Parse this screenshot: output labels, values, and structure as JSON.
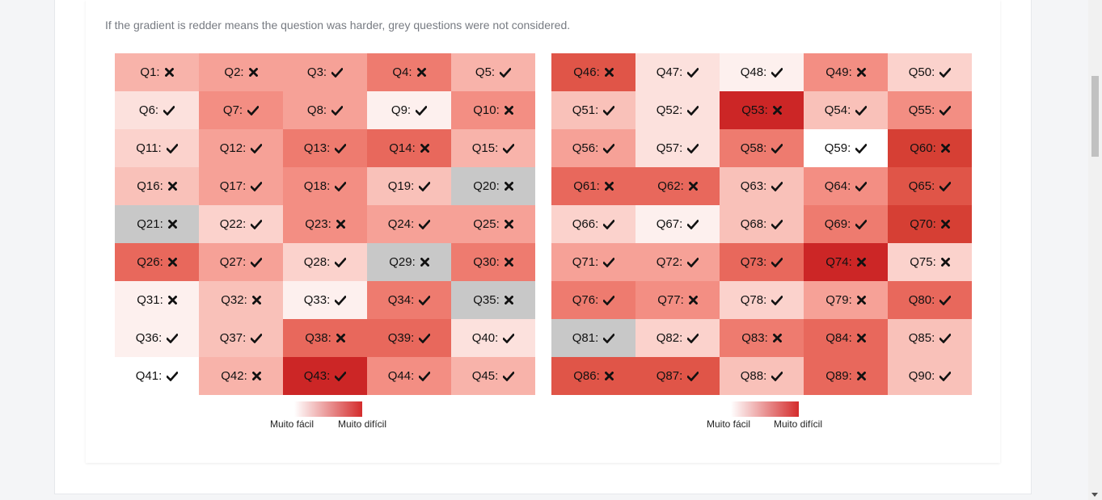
{
  "note": "If the gradient is redder means the question was harder, grey questions were not considered.",
  "legend": {
    "easy": "Muito fácil",
    "hard": "Muito difícil",
    "gradient_from": "#ffffff",
    "gradient_to": "#d42c2c"
  },
  "gradient_colors": [
    "#ffffff",
    "#fdf0ee",
    "#fce1dd",
    "#fbd2cc",
    "#f9c1b9",
    "#f8b3aa",
    "#f6a197",
    "#f38e83",
    "#ee7b6f",
    "#e8685c",
    "#e05548",
    "#d63f34",
    "#cc2626"
  ],
  "grey_color": "#c8c8c8",
  "grids": [
    {
      "questions": [
        {
          "label": "Q1:",
          "status": "wrong",
          "level": 5
        },
        {
          "label": "Q2:",
          "status": "wrong",
          "level": 6
        },
        {
          "label": "Q3:",
          "status": "correct",
          "level": 6
        },
        {
          "label": "Q4:",
          "status": "wrong",
          "level": 8
        },
        {
          "label": "Q5:",
          "status": "correct",
          "level": 5
        },
        {
          "label": "Q6:",
          "status": "correct",
          "level": 2
        },
        {
          "label": "Q7:",
          "status": "correct",
          "level": 7
        },
        {
          "label": "Q8:",
          "status": "correct",
          "level": 6
        },
        {
          "label": "Q9:",
          "status": "correct",
          "level": 1
        },
        {
          "label": "Q10:",
          "status": "wrong",
          "level": 7
        },
        {
          "label": "Q11:",
          "status": "correct",
          "level": 3
        },
        {
          "label": "Q12:",
          "status": "correct",
          "level": 6
        },
        {
          "label": "Q13:",
          "status": "correct",
          "level": 8
        },
        {
          "label": "Q14:",
          "status": "wrong",
          "level": 9
        },
        {
          "label": "Q15:",
          "status": "correct",
          "level": 5
        },
        {
          "label": "Q16:",
          "status": "wrong",
          "level": 4
        },
        {
          "label": "Q17:",
          "status": "correct",
          "level": 6
        },
        {
          "label": "Q18:",
          "status": "correct",
          "level": 7
        },
        {
          "label": "Q19:",
          "status": "correct",
          "level": 4
        },
        {
          "label": "Q20:",
          "status": "wrong",
          "grey": true
        },
        {
          "label": "Q21:",
          "status": "wrong",
          "grey": true
        },
        {
          "label": "Q22:",
          "status": "correct",
          "level": 3
        },
        {
          "label": "Q23:",
          "status": "wrong",
          "level": 7
        },
        {
          "label": "Q24:",
          "status": "correct",
          "level": 6
        },
        {
          "label": "Q25:",
          "status": "wrong",
          "level": 6
        },
        {
          "label": "Q26:",
          "status": "wrong",
          "level": 9
        },
        {
          "label": "Q27:",
          "status": "correct",
          "level": 6
        },
        {
          "label": "Q28:",
          "status": "correct",
          "level": 3
        },
        {
          "label": "Q29:",
          "status": "wrong",
          "grey": true
        },
        {
          "label": "Q30:",
          "status": "wrong",
          "level": 8
        },
        {
          "label": "Q31:",
          "status": "wrong",
          "level": 1
        },
        {
          "label": "Q32:",
          "status": "wrong",
          "level": 4
        },
        {
          "label": "Q33:",
          "status": "correct",
          "level": 1
        },
        {
          "label": "Q34:",
          "status": "correct",
          "level": 8
        },
        {
          "label": "Q35:",
          "status": "wrong",
          "grey": true
        },
        {
          "label": "Q36:",
          "status": "correct",
          "level": 1
        },
        {
          "label": "Q37:",
          "status": "correct",
          "level": 4
        },
        {
          "label": "Q38:",
          "status": "wrong",
          "level": 9
        },
        {
          "label": "Q39:",
          "status": "correct",
          "level": 9
        },
        {
          "label": "Q40:",
          "status": "correct",
          "level": 2
        },
        {
          "label": "Q41:",
          "status": "correct",
          "level": 0
        },
        {
          "label": "Q42:",
          "status": "wrong",
          "level": 5
        },
        {
          "label": "Q43:",
          "status": "correct",
          "level": 12
        },
        {
          "label": "Q44:",
          "status": "correct",
          "level": 7
        },
        {
          "label": "Q45:",
          "status": "correct",
          "level": 5
        }
      ]
    },
    {
      "questions": [
        {
          "label": "Q46:",
          "status": "wrong",
          "level": 10
        },
        {
          "label": "Q47:",
          "status": "correct",
          "level": 2
        },
        {
          "label": "Q48:",
          "status": "correct",
          "level": 1
        },
        {
          "label": "Q49:",
          "status": "wrong",
          "level": 7
        },
        {
          "label": "Q50:",
          "status": "correct",
          "level": 3
        },
        {
          "label": "Q51:",
          "status": "correct",
          "level": 4
        },
        {
          "label": "Q52:",
          "status": "correct",
          "level": 2
        },
        {
          "label": "Q53:",
          "status": "wrong",
          "level": 12
        },
        {
          "label": "Q54:",
          "status": "correct",
          "level": 4
        },
        {
          "label": "Q55:",
          "status": "correct",
          "level": 7
        },
        {
          "label": "Q56:",
          "status": "correct",
          "level": 6
        },
        {
          "label": "Q57:",
          "status": "correct",
          "level": 2
        },
        {
          "label": "Q58:",
          "status": "correct",
          "level": 8
        },
        {
          "label": "Q59:",
          "status": "correct",
          "level": 0
        },
        {
          "label": "Q60:",
          "status": "wrong",
          "level": 11
        },
        {
          "label": "Q61:",
          "status": "wrong",
          "level": 9
        },
        {
          "label": "Q62:",
          "status": "wrong",
          "level": 9
        },
        {
          "label": "Q63:",
          "status": "correct",
          "level": 4
        },
        {
          "label": "Q64:",
          "status": "correct",
          "level": 7
        },
        {
          "label": "Q65:",
          "status": "correct",
          "level": 10
        },
        {
          "label": "Q66:",
          "status": "correct",
          "level": 3
        },
        {
          "label": "Q67:",
          "status": "correct",
          "level": 1
        },
        {
          "label": "Q68:",
          "status": "correct",
          "level": 4
        },
        {
          "label": "Q69:",
          "status": "correct",
          "level": 8
        },
        {
          "label": "Q70:",
          "status": "wrong",
          "level": 11
        },
        {
          "label": "Q71:",
          "status": "correct",
          "level": 6
        },
        {
          "label": "Q72:",
          "status": "correct",
          "level": 6
        },
        {
          "label": "Q73:",
          "status": "correct",
          "level": 9
        },
        {
          "label": "Q74:",
          "status": "wrong",
          "level": 12
        },
        {
          "label": "Q75:",
          "status": "wrong",
          "level": 3
        },
        {
          "label": "Q76:",
          "status": "correct",
          "level": 8
        },
        {
          "label": "Q77:",
          "status": "wrong",
          "level": 7
        },
        {
          "label": "Q78:",
          "status": "correct",
          "level": 3
        },
        {
          "label": "Q79:",
          "status": "wrong",
          "level": 6
        },
        {
          "label": "Q80:",
          "status": "correct",
          "level": 9
        },
        {
          "label": "Q81:",
          "status": "correct",
          "grey": true
        },
        {
          "label": "Q82:",
          "status": "correct",
          "level": 3
        },
        {
          "label": "Q83:",
          "status": "wrong",
          "level": 8
        },
        {
          "label": "Q84:",
          "status": "wrong",
          "level": 9
        },
        {
          "label": "Q85:",
          "status": "correct",
          "level": 4
        },
        {
          "label": "Q86:",
          "status": "wrong",
          "level": 10
        },
        {
          "label": "Q87:",
          "status": "correct",
          "level": 10
        },
        {
          "label": "Q88:",
          "status": "correct",
          "level": 4
        },
        {
          "label": "Q89:",
          "status": "wrong",
          "level": 9
        },
        {
          "label": "Q90:",
          "status": "correct",
          "level": 4
        }
      ]
    }
  ]
}
